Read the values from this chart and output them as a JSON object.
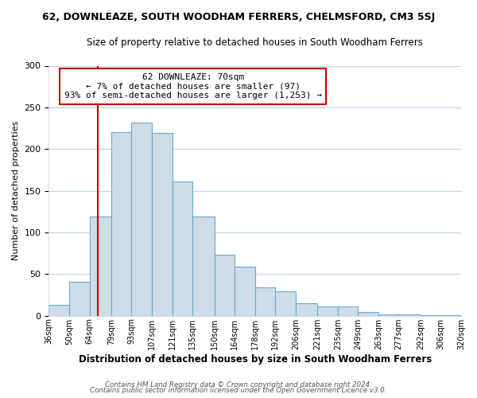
{
  "title": "62, DOWNLEAZE, SOUTH WOODHAM FERRERS, CHELMSFORD, CM3 5SJ",
  "subtitle": "Size of property relative to detached houses in South Woodham Ferrers",
  "xlabel": "Distribution of detached houses by size in South Woodham Ferrers",
  "ylabel": "Number of detached properties",
  "bin_labels": [
    "36sqm",
    "50sqm",
    "64sqm",
    "79sqm",
    "93sqm",
    "107sqm",
    "121sqm",
    "135sqm",
    "150sqm",
    "164sqm",
    "178sqm",
    "192sqm",
    "206sqm",
    "221sqm",
    "235sqm",
    "249sqm",
    "263sqm",
    "277sqm",
    "292sqm",
    "306sqm",
    "320sqm"
  ],
  "bin_edges": [
    36,
    50,
    64,
    79,
    93,
    107,
    121,
    135,
    150,
    164,
    178,
    192,
    206,
    221,
    235,
    249,
    263,
    277,
    292,
    306,
    320
  ],
  "bar_heights": [
    13,
    41,
    119,
    220,
    232,
    219,
    161,
    119,
    73,
    59,
    34,
    29,
    15,
    11,
    11,
    4,
    2,
    2,
    1,
    1
  ],
  "bar_color": "#ccdde8",
  "bar_edge_color": "#6aaaca",
  "vline_x": 70,
  "vline_color": "#cc0000",
  "annotation_title": "62 DOWNLEAZE: 70sqm",
  "annotation_line1": "← 7% of detached houses are smaller (97)",
  "annotation_line2": "93% of semi-detached houses are larger (1,253) →",
  "annotation_box_facecolor": "#ffffff",
  "annotation_box_edgecolor": "#cc0000",
  "ylim": [
    0,
    300
  ],
  "yticks": [
    0,
    50,
    100,
    150,
    200,
    250,
    300
  ],
  "footer1": "Contains HM Land Registry data © Crown copyright and database right 2024.",
  "footer2": "Contains public sector information licensed under the Open Government Licence v3.0.",
  "background_color": "#ffffff",
  "grid_color": "#c8d8e8"
}
